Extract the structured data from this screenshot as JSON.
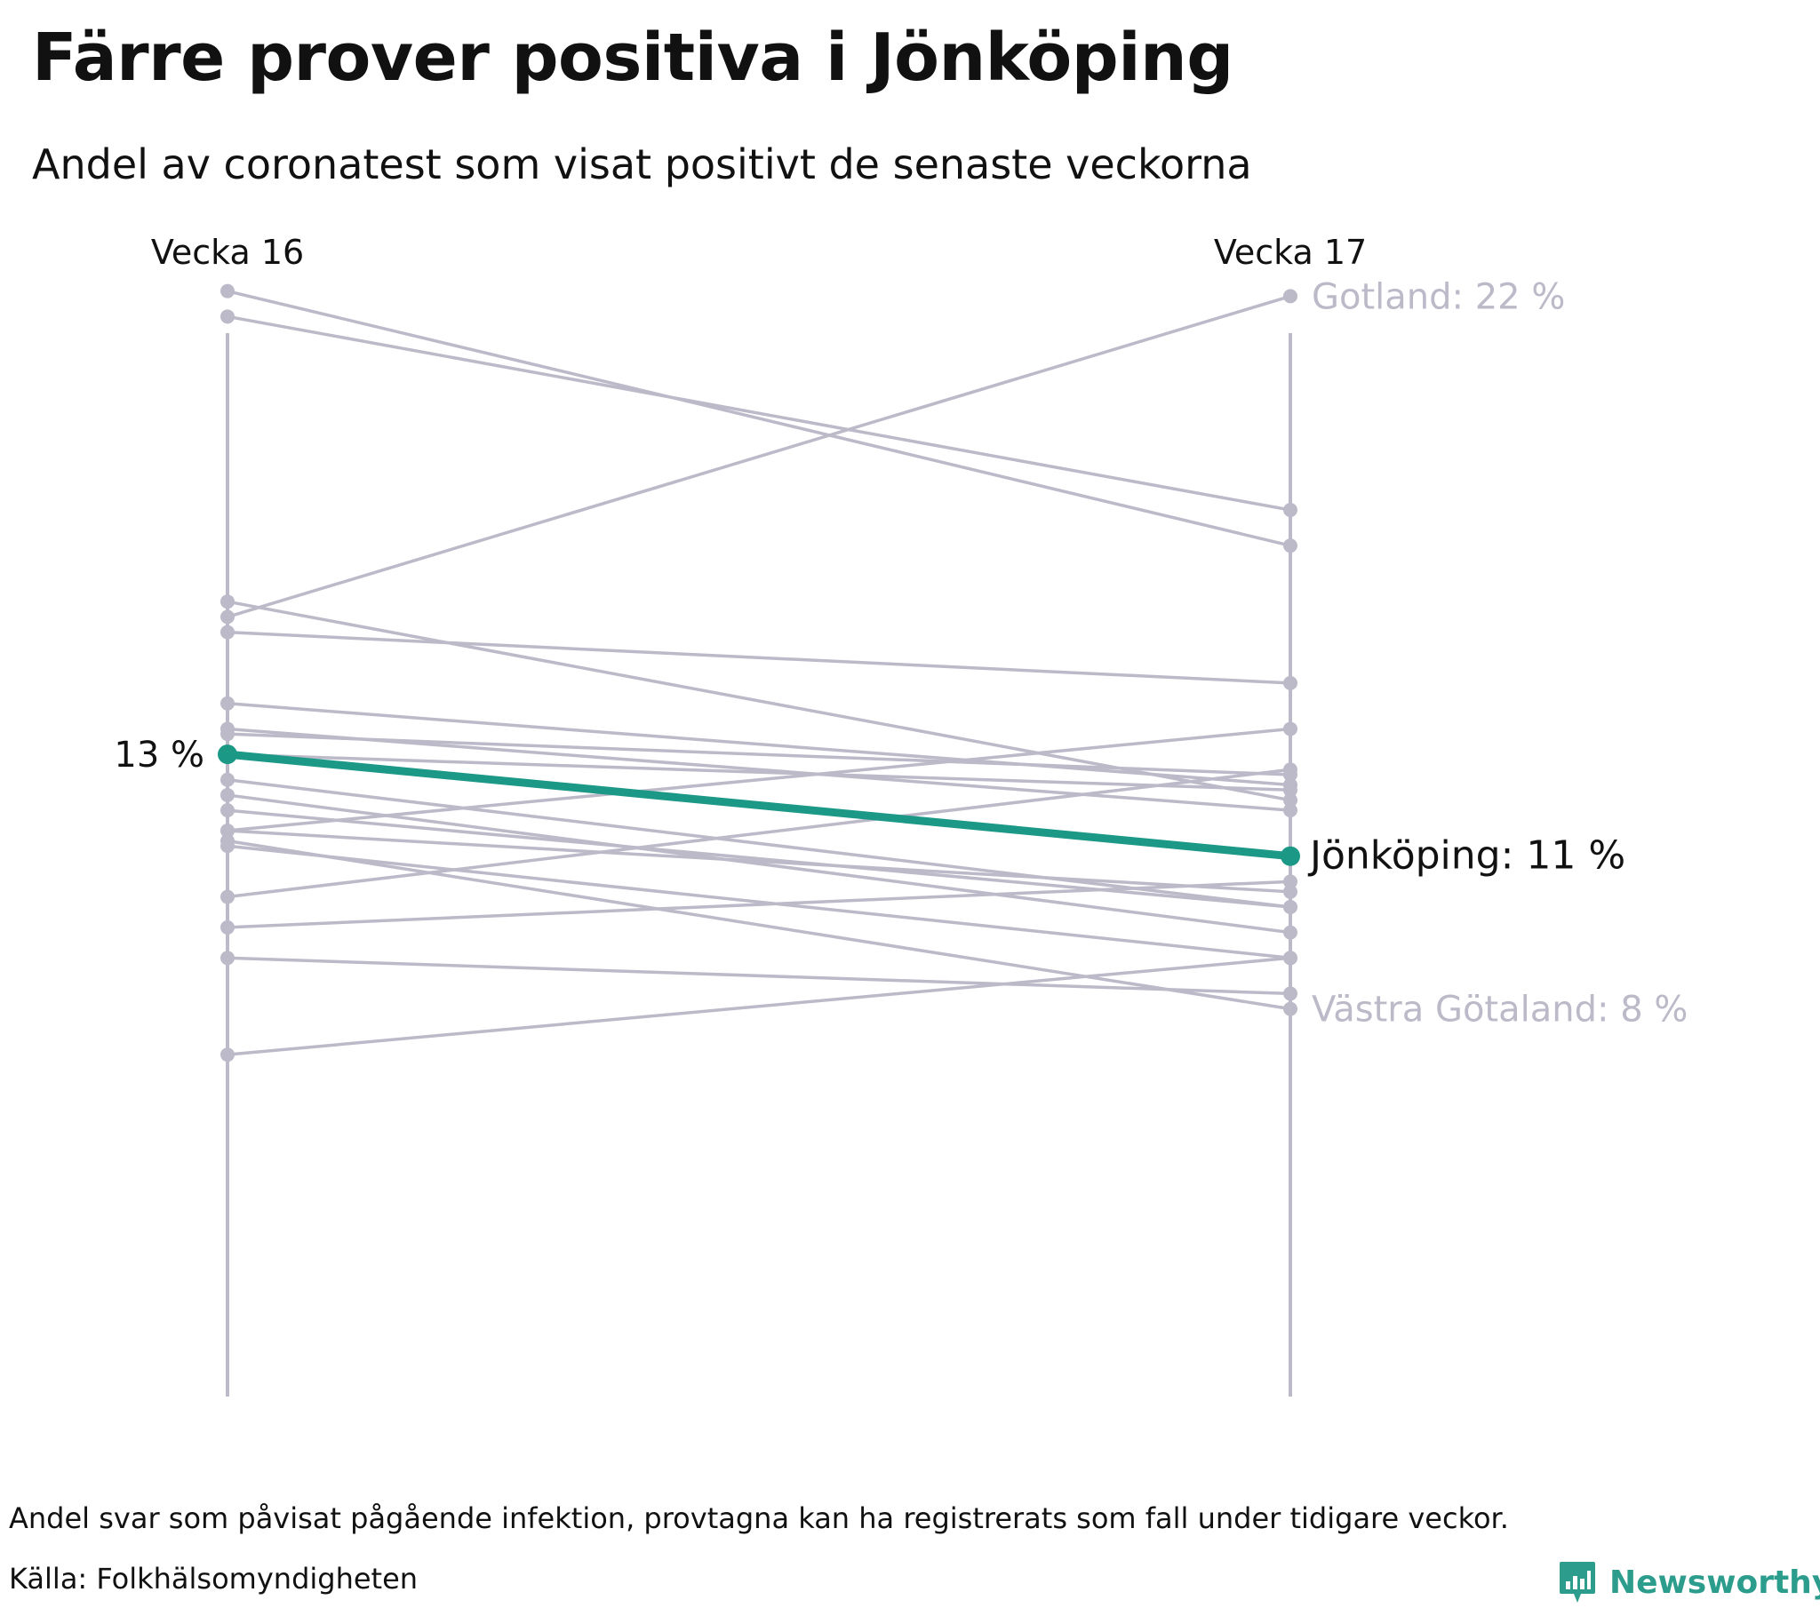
{
  "title": "Färre prover positiva i Jönköping",
  "subtitle": "Andel av coronatest som visat positivt de senaste veckorna",
  "note": "Andel svar som påvisat pågående infektion, provtagna kan ha registrerats som fall under tidigare veckor.",
  "source": "Källa: Folkhälsomyndigheten",
  "brand": "Newsworthy",
  "colors": {
    "highlight": "#1b9886",
    "other": "#bcb9c8",
    "text": "#111111",
    "label_muted": "#bcb9c8"
  },
  "chart_data": {
    "type": "line",
    "x": [
      "Vecka 16",
      "Vecka 17"
    ],
    "series": [
      {
        "name": "Gotland",
        "values": [
          15.7,
          22.0
        ]
      },
      {
        "name": "Jönköping",
        "values": [
          13.0,
          11.0
        ]
      },
      {
        "name": "Västra Götaland",
        "values": [
          11.3,
          8.0
        ]
      },
      {
        "values": [
          22.1,
          17.1
        ]
      },
      {
        "values": [
          21.6,
          17.8
        ]
      },
      {
        "values": [
          16.0,
          12.1
        ]
      },
      {
        "values": [
          15.4,
          14.4
        ]
      },
      {
        "values": [
          14.0,
          12.4
        ]
      },
      {
        "values": [
          13.5,
          11.9
        ]
      },
      {
        "values": [
          13.0,
          12.3
        ]
      },
      {
        "values": [
          12.5,
          10.0
        ]
      },
      {
        "values": [
          13.4,
          12.6
        ]
      },
      {
        "values": [
          12.2,
          9.5
        ]
      },
      {
        "values": [
          11.9,
          10.0
        ]
      },
      {
        "values": [
          11.5,
          10.3
        ]
      },
      {
        "values": [
          11.5,
          13.5
        ]
      },
      {
        "values": [
          11.2,
          9.0
        ]
      },
      {
        "values": [
          10.2,
          12.7
        ]
      },
      {
        "values": [
          9.6,
          10.5
        ]
      },
      {
        "values": [
          9.0,
          8.3
        ]
      },
      {
        "values": [
          7.1,
          9.0
        ]
      }
    ],
    "labels": {
      "start": "13 %",
      "gotland": "Gotland: 22 %",
      "jonkoping": "Jönköping: 11 %",
      "vastra": "Västra Götaland: 8 %"
    },
    "ylim": [
      0,
      24
    ],
    "grid": false,
    "legend": "none"
  }
}
